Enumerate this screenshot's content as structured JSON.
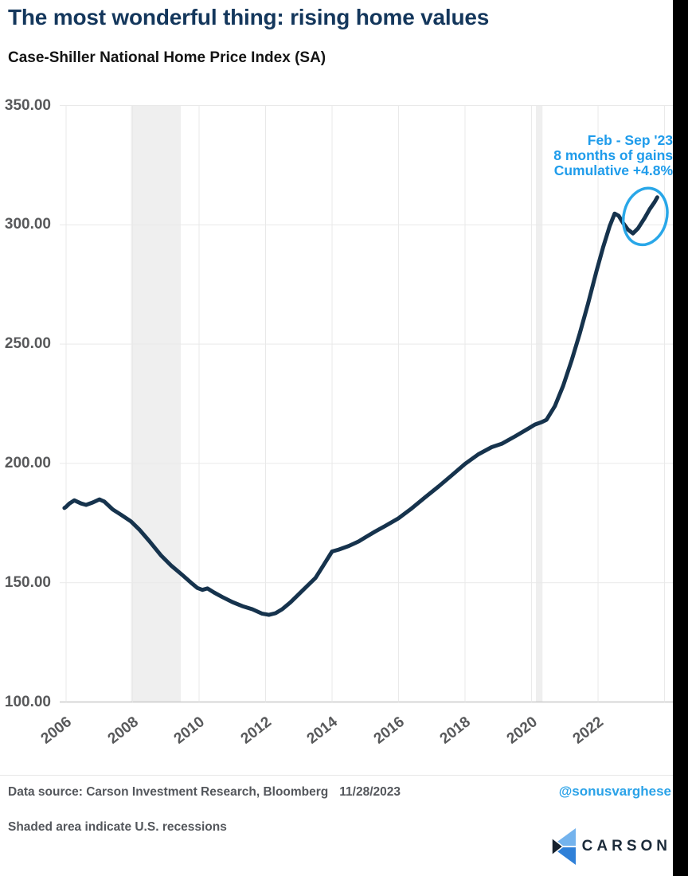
{
  "header": {
    "title": "The most wonderful thing: rising home values",
    "subtitle": "Case-Shiller National Home Price Index (SA)"
  },
  "chart_data": {
    "type": "line",
    "title": "Case-Shiller National Home Price Index (SA)",
    "x_axis": {
      "min": 2006,
      "max": 2024.25,
      "ticks": [
        2006,
        2008,
        2010,
        2012,
        2014,
        2016,
        2018,
        2020,
        2022
      ],
      "grid_extra": [
        2024
      ]
    },
    "y_axis": {
      "min": 100,
      "max": 350,
      "ticks": [
        {
          "value": 350,
          "label": "350.00"
        },
        {
          "value": 300,
          "label": "300.00"
        },
        {
          "value": 250,
          "label": "250.00"
        },
        {
          "value": 200,
          "label": "200.00"
        },
        {
          "value": 150,
          "label": "150.00"
        },
        {
          "value": 100,
          "label": "100.00"
        }
      ]
    },
    "recessions": [
      {
        "start": 2007.95,
        "end": 2009.45
      },
      {
        "start": 2020.13,
        "end": 2020.33
      }
    ],
    "series": [
      {
        "name": "Case-Shiller National Home Price Index (SA)",
        "points": [
          [
            2005.95,
            181.3
          ],
          [
            2006.0,
            181.8
          ],
          [
            2006.1,
            183.2
          ],
          [
            2006.25,
            184.5
          ],
          [
            2006.45,
            183.2
          ],
          [
            2006.6,
            182.6
          ],
          [
            2006.8,
            183.6
          ],
          [
            2007.0,
            184.9
          ],
          [
            2007.15,
            184.0
          ],
          [
            2007.4,
            180.7
          ],
          [
            2007.65,
            178.5
          ],
          [
            2007.95,
            175.7
          ],
          [
            2008.2,
            172.3
          ],
          [
            2008.5,
            167.5
          ],
          [
            2008.85,
            161.5
          ],
          [
            2009.15,
            157.3
          ],
          [
            2009.5,
            153.2
          ],
          [
            2009.8,
            149.5
          ],
          [
            2009.95,
            147.8
          ],
          [
            2010.1,
            147.0
          ],
          [
            2010.25,
            147.6
          ],
          [
            2010.45,
            145.9
          ],
          [
            2010.7,
            144.0
          ],
          [
            2011.0,
            141.9
          ],
          [
            2011.3,
            140.2
          ],
          [
            2011.6,
            138.9
          ],
          [
            2011.9,
            137.0
          ],
          [
            2012.1,
            136.5
          ],
          [
            2012.3,
            137.2
          ],
          [
            2012.5,
            138.9
          ],
          [
            2012.75,
            141.8
          ],
          [
            2013.0,
            145.2
          ],
          [
            2013.25,
            148.6
          ],
          [
            2013.5,
            152.0
          ],
          [
            2013.75,
            157.5
          ],
          [
            2014.0,
            163.1
          ],
          [
            2014.2,
            163.9
          ],
          [
            2014.5,
            165.4
          ],
          [
            2014.8,
            167.3
          ],
          [
            2015.0,
            169.0
          ],
          [
            2015.3,
            171.5
          ],
          [
            2015.6,
            173.8
          ],
          [
            2016.0,
            177.0
          ],
          [
            2016.4,
            181.2
          ],
          [
            2016.8,
            185.8
          ],
          [
            2017.2,
            190.3
          ],
          [
            2017.6,
            195.0
          ],
          [
            2018.0,
            199.8
          ],
          [
            2018.4,
            203.8
          ],
          [
            2018.8,
            206.8
          ],
          [
            2019.1,
            208.2
          ],
          [
            2019.5,
            211.3
          ],
          [
            2019.9,
            214.6
          ],
          [
            2020.1,
            216.3
          ],
          [
            2020.3,
            217.3
          ],
          [
            2020.45,
            218.3
          ],
          [
            2020.7,
            224.0
          ],
          [
            2020.95,
            232.5
          ],
          [
            2021.2,
            243.0
          ],
          [
            2021.45,
            254.5
          ],
          [
            2021.7,
            267.0
          ],
          [
            2021.95,
            280.5
          ],
          [
            2022.15,
            290.5
          ],
          [
            2022.35,
            299.5
          ],
          [
            2022.5,
            304.7
          ],
          [
            2022.62,
            303.8
          ],
          [
            2022.75,
            300.8
          ],
          [
            2022.9,
            298.0
          ],
          [
            2023.05,
            296.4
          ],
          [
            2023.2,
            298.5
          ],
          [
            2023.4,
            302.8
          ],
          [
            2023.55,
            306.5
          ],
          [
            2023.7,
            309.5
          ],
          [
            2023.78,
            311.5
          ]
        ]
      }
    ],
    "annotation": {
      "line1": "Feb - Sep '23",
      "line2": "8 months of gains",
      "line3": "Cumulative +4.8%",
      "circle": {
        "year": 2023.42,
        "value": 303.5
      }
    },
    "legend": "none",
    "grid": "on"
  },
  "footer": {
    "data_source": "Data source: Carson Investment Research, Bloomberg",
    "date": "11/28/2023",
    "handle": "@sonusvarghese",
    "note": "Shaded area indicate U.S. recessions",
    "brand": "CARSON"
  },
  "colors": {
    "line": "#16334D",
    "annotation_blue": "#1F9CEB",
    "circle_blue": "#29A7E8",
    "recession_band": "#EFEFEF",
    "gridline": "#E9E9E9",
    "axis_line": "#C9C9C9",
    "title_navy": "#14375C",
    "tick_gray": "#58595B",
    "logo_light_blue": "#74B3ED",
    "logo_blue": "#2F80D8",
    "logo_dark": "#16212E"
  }
}
